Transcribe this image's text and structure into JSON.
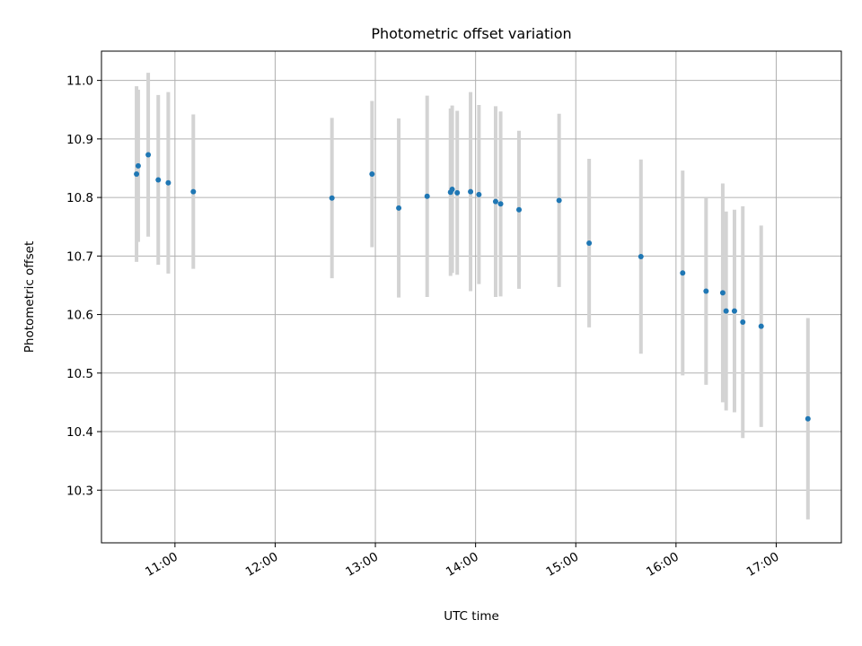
{
  "chart_data": {
    "type": "scatter",
    "title": "Photometric offset variation",
    "xlabel": "UTC time",
    "ylabel": "Photometric offset",
    "x_ticks": [
      "11:00",
      "12:00",
      "13:00",
      "14:00",
      "15:00",
      "16:00",
      "17:00"
    ],
    "y_ticks": [
      "10.3",
      "10.4",
      "10.5",
      "10.6",
      "10.7",
      "10.8",
      "10.9",
      "11.0"
    ],
    "xlim": [
      "10:16",
      "17:39"
    ],
    "ylim": [
      10.21,
      11.05
    ],
    "grid": true,
    "marker_color": "#1f77b4",
    "errorbar_color": "#d3d3d3",
    "series": [
      {
        "points": [
          {
            "x": "10:37",
            "y": 10.84,
            "yerr": 0.15
          },
          {
            "x": "10:38",
            "y": 10.854,
            "yerr": 0.13
          },
          {
            "x": "10:44",
            "y": 10.873,
            "yerr": 0.14
          },
          {
            "x": "10:50",
            "y": 10.83,
            "yerr": 0.145
          },
          {
            "x": "10:56",
            "y": 10.825,
            "yerr": 0.155
          },
          {
            "x": "11:11",
            "y": 10.81,
            "yerr": 0.132
          },
          {
            "x": "12:34",
            "y": 10.799,
            "yerr": 0.137
          },
          {
            "x": "12:58",
            "y": 10.84,
            "yerr": 0.125
          },
          {
            "x": "13:14",
            "y": 10.782,
            "yerr": 0.153
          },
          {
            "x": "13:31",
            "y": 10.802,
            "yerr": 0.172
          },
          {
            "x": "13:45",
            "y": 10.809,
            "yerr": 0.143
          },
          {
            "x": "13:46",
            "y": 10.814,
            "yerr": 0.143
          },
          {
            "x": "13:49",
            "y": 10.808,
            "yerr": 0.14
          },
          {
            "x": "13:57",
            "y": 10.81,
            "yerr": 0.17
          },
          {
            "x": "14:02",
            "y": 10.805,
            "yerr": 0.153
          },
          {
            "x": "14:12",
            "y": 10.793,
            "yerr": 0.163
          },
          {
            "x": "14:15",
            "y": 10.789,
            "yerr": 0.158
          },
          {
            "x": "14:26",
            "y": 10.779,
            "yerr": 0.135
          },
          {
            "x": "14:50",
            "y": 10.795,
            "yerr": 0.148
          },
          {
            "x": "15:08",
            "y": 10.722,
            "yerr": 0.144
          },
          {
            "x": "15:39",
            "y": 10.699,
            "yerr": 0.166
          },
          {
            "x": "16:04",
            "y": 10.671,
            "yerr": 0.175
          },
          {
            "x": "16:18",
            "y": 10.64,
            "yerr": 0.16
          },
          {
            "x": "16:28",
            "y": 10.637,
            "yerr": 0.187
          },
          {
            "x": "16:30",
            "y": 10.606,
            "yerr": 0.17
          },
          {
            "x": "16:35",
            "y": 10.606,
            "yerr": 0.173
          },
          {
            "x": "16:40",
            "y": 10.587,
            "yerr": 0.198
          },
          {
            "x": "16:51",
            "y": 10.58,
            "yerr": 0.172
          },
          {
            "x": "17:19",
            "y": 10.422,
            "yerr": 0.172
          }
        ]
      }
    ]
  }
}
